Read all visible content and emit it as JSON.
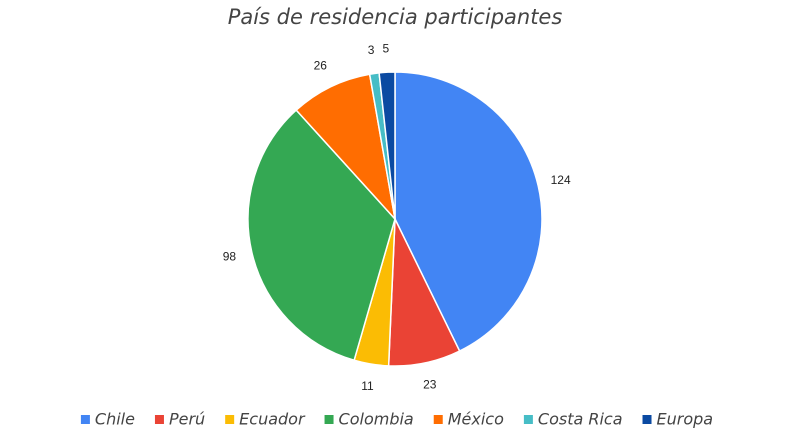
{
  "chart_data": {
    "type": "pie",
    "title": "País de residencia participantes",
    "categories": [
      "Chile",
      "Perú",
      "Ecuador",
      "Colombia",
      "México",
      "Costa Rica",
      "Europa"
    ],
    "values": [
      124,
      23,
      11,
      98,
      26,
      3,
      5
    ],
    "colors": [
      "#4285f4",
      "#ea4335",
      "#fbbc04",
      "#34a853",
      "#ff6d01",
      "#46bdc6",
      "#0b4aa2"
    ],
    "legend": "bottom"
  }
}
